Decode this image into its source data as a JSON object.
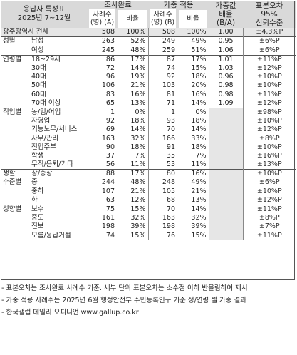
{
  "header": {
    "respondent_title": "응답자 특성표",
    "period": "2025년 7~12월",
    "survey_complete": "조사완료",
    "weighted": "가중 적용",
    "weight_ratio": "가중값\n배율\n(B/A)",
    "sampling_error": "표본오차\n95%\n신뢰수준",
    "cases_a": "사례수\n(명) (A)",
    "ratio_a": "비율",
    "cases_b": "사례수\n(명) (B)",
    "ratio_b": "비율"
  },
  "rows": [
    {
      "group": "광주광역시 전체",
      "label": "",
      "n_a": "508",
      "p_a": "100%",
      "n_b": "508",
      "p_b": "100%",
      "w": "1.00",
      "moe": "±4.3%P",
      "total": true
    },
    {
      "group": "성별",
      "label": "남성",
      "n_a": "263",
      "p_a": "52%",
      "n_b": "249",
      "p_b": "49%",
      "w": "0.95",
      "moe": "±6%P"
    },
    {
      "group": "",
      "label": "여성",
      "n_a": "245",
      "p_a": "48%",
      "n_b": "259",
      "p_b": "51%",
      "w": "1.06",
      "moe": "±6%P"
    },
    {
      "group": "연령별",
      "label": "18~29세",
      "n_a": "86",
      "p_a": "17%",
      "n_b": "87",
      "p_b": "17%",
      "w": "1.01",
      "moe": "±11%P"
    },
    {
      "group": "",
      "label": "30대",
      "n_a": "72",
      "p_a": "14%",
      "n_b": "74",
      "p_b": "15%",
      "w": "1.03",
      "moe": "±12%P"
    },
    {
      "group": "",
      "label": "40대",
      "n_a": "96",
      "p_a": "19%",
      "n_b": "92",
      "p_b": "18%",
      "w": "0.96",
      "moe": "±10%P"
    },
    {
      "group": "",
      "label": "50대",
      "n_a": "106",
      "p_a": "21%",
      "n_b": "103",
      "p_b": "20%",
      "w": "0.98",
      "moe": "±10%P"
    },
    {
      "group": "",
      "label": "60대",
      "n_a": "83",
      "p_a": "16%",
      "n_b": "81",
      "p_b": "16%",
      "w": "0.98",
      "moe": "±11%P"
    },
    {
      "group": "",
      "label": "70대 이상",
      "n_a": "65",
      "p_a": "13%",
      "n_b": "71",
      "p_b": "14%",
      "w": "1.09",
      "moe": "±12%P"
    },
    {
      "group": "직업별",
      "label": "농/임/어업",
      "n_a": "1",
      "p_a": "0%",
      "n_b": "1",
      "p_b": "0%",
      "w": "",
      "moe": "±98%P"
    },
    {
      "group": "",
      "label": "자영업",
      "n_a": "92",
      "p_a": "18%",
      "n_b": "93",
      "p_b": "18%",
      "w": "",
      "moe": "±10%P"
    },
    {
      "group": "",
      "label": "기능노무/서비스",
      "n_a": "69",
      "p_a": "14%",
      "n_b": "70",
      "p_b": "14%",
      "w": "",
      "moe": "±12%P"
    },
    {
      "group": "",
      "label": "사무/관리",
      "n_a": "163",
      "p_a": "32%",
      "n_b": "166",
      "p_b": "33%",
      "w": "",
      "moe": "±8%P"
    },
    {
      "group": "",
      "label": "전업주부",
      "n_a": "90",
      "p_a": "18%",
      "n_b": "91",
      "p_b": "18%",
      "w": "",
      "moe": "±10%P"
    },
    {
      "group": "",
      "label": "학생",
      "n_a": "37",
      "p_a": "7%",
      "n_b": "35",
      "p_b": "7%",
      "w": "",
      "moe": "±16%P"
    },
    {
      "group": "",
      "label": "무직/은퇴/기타",
      "n_a": "56",
      "p_a": "11%",
      "n_b": "53",
      "p_b": "11%",
      "w": "",
      "moe": "±13%P"
    },
    {
      "group": "생활",
      "label": "상/중상",
      "n_a": "88",
      "p_a": "17%",
      "n_b": "80",
      "p_b": "16%",
      "w": "",
      "moe": "±10%P"
    },
    {
      "group": "수준별",
      "label": "중",
      "n_a": "244",
      "p_a": "48%",
      "n_b": "248",
      "p_b": "49%",
      "w": "",
      "moe": "±6%P"
    },
    {
      "group": "",
      "label": "중하",
      "n_a": "107",
      "p_a": "21%",
      "n_b": "105",
      "p_b": "21%",
      "w": "",
      "moe": "±10%P"
    },
    {
      "group": "",
      "label": "하",
      "n_a": "63",
      "p_a": "12%",
      "n_b": "68",
      "p_b": "13%",
      "w": "",
      "moe": "±12%P"
    },
    {
      "group": "성향별",
      "label": "보수",
      "n_a": "75",
      "p_a": "15%",
      "n_b": "70",
      "p_b": "14%",
      "w": "",
      "moe": "±11%P"
    },
    {
      "group": "",
      "label": "중도",
      "n_a": "161",
      "p_a": "32%",
      "n_b": "163",
      "p_b": "32%",
      "w": "",
      "moe": "±8%P"
    },
    {
      "group": "",
      "label": "진보",
      "n_a": "198",
      "p_a": "39%",
      "n_b": "198",
      "p_b": "39%",
      "w": "",
      "moe": "±7%P"
    },
    {
      "group": "",
      "label": "모름/응답거절",
      "n_a": "74",
      "p_a": "15%",
      "n_b": "76",
      "p_b": "15%",
      "w": "",
      "moe": "±11%P"
    }
  ],
  "notes": [
    "- 표본오차는 조사완료 사례수 기준. 세부 단위 표본오차는 소수점 이하 반올림하여 제시",
    "- 가중 적용 사례수는 2025년 6월 행정안전부 주민등록인구 기준 성/연령 셀 가중 결과",
    "- 한국갤럽 데일리 오피니언 www.gallup.co.kr"
  ]
}
